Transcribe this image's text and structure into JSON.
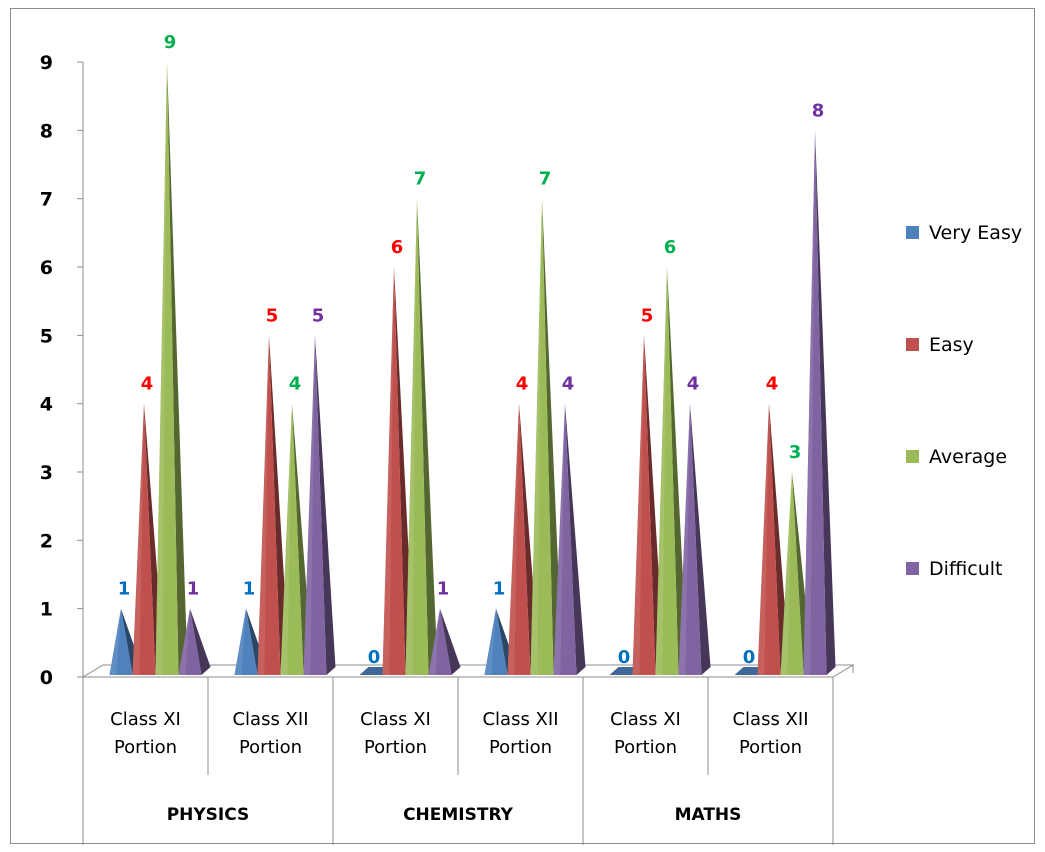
{
  "chart_data": {
    "type": "bar",
    "title": "",
    "xlabel": "",
    "ylabel": "",
    "ylim": [
      0,
      9
    ],
    "yticks": [
      "0",
      "1",
      "2",
      "3",
      "4",
      "5",
      "6",
      "7",
      "8",
      "9"
    ],
    "grid": false,
    "legend_position": "right",
    "groups": [
      {
        "label": "PHYSICS",
        "categories": [
          "Class XI Portion",
          "Class XII Portion"
        ]
      },
      {
        "label": "CHEMISTRY",
        "categories": [
          "Class XI Portion",
          "Class XII Portion"
        ]
      },
      {
        "label": "MATHS",
        "categories": [
          "Class XI Portion",
          "Class XII Portion"
        ]
      }
    ],
    "series": [
      {
        "name": "Very Easy",
        "color": "#4f81bd",
        "label_color": "#0070c0",
        "values": [
          1,
          1,
          0,
          1,
          0,
          0
        ]
      },
      {
        "name": "Easy",
        "color": "#c0504d",
        "label_color": "#ff0000",
        "values": [
          4,
          5,
          6,
          4,
          5,
          4
        ]
      },
      {
        "name": "Average",
        "color": "#9bbb59",
        "label_color": "#00b050",
        "values": [
          9,
          4,
          7,
          7,
          6,
          3
        ]
      },
      {
        "name": "Difficult",
        "color": "#8064a2",
        "label_color": "#7030a0",
        "values": [
          1,
          5,
          1,
          4,
          4,
          8
        ]
      }
    ]
  }
}
